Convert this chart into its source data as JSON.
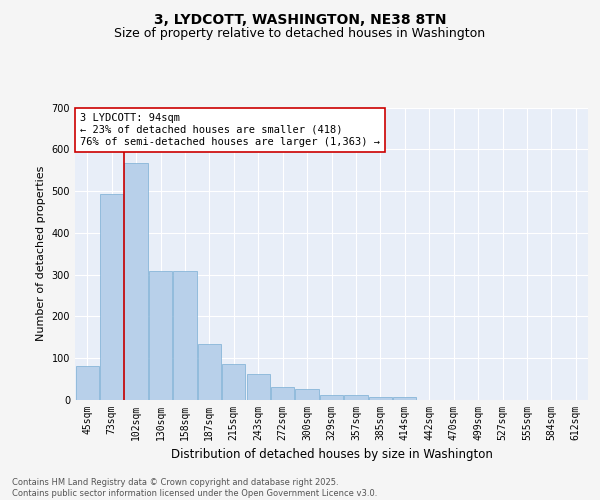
{
  "title": "3, LYDCOTT, WASHINGTON, NE38 8TN",
  "subtitle": "Size of property relative to detached houses in Washington",
  "xlabel": "Distribution of detached houses by size in Washington",
  "ylabel": "Number of detached properties",
  "categories": [
    "45sqm",
    "73sqm",
    "102sqm",
    "130sqm",
    "158sqm",
    "187sqm",
    "215sqm",
    "243sqm",
    "272sqm",
    "300sqm",
    "329sqm",
    "357sqm",
    "385sqm",
    "414sqm",
    "442sqm",
    "470sqm",
    "499sqm",
    "527sqm",
    "555sqm",
    "584sqm",
    "612sqm"
  ],
  "values": [
    82,
    494,
    567,
    308,
    308,
    135,
    85,
    62,
    30,
    27,
    12,
    12,
    8,
    8,
    0,
    0,
    0,
    0,
    0,
    0,
    0
  ],
  "bar_color": "#b8d0ea",
  "bar_edge_color": "#7aaed4",
  "background_color": "#e8eef8",
  "grid_color": "#ffffff",
  "property_line_color": "#cc0000",
  "annotation_text": "3 LYDCOTT: 94sqm\n← 23% of detached houses are smaller (418)\n76% of semi-detached houses are larger (1,363) →",
  "annotation_box_color": "#ffffff",
  "annotation_box_edge": "#cc0000",
  "ylim": [
    0,
    700
  ],
  "yticks": [
    0,
    100,
    200,
    300,
    400,
    500,
    600,
    700
  ],
  "footer_text": "Contains HM Land Registry data © Crown copyright and database right 2025.\nContains public sector information licensed under the Open Government Licence v3.0.",
  "title_fontsize": 10,
  "subtitle_fontsize": 9,
  "xlabel_fontsize": 8.5,
  "ylabel_fontsize": 8,
  "tick_fontsize": 7,
  "footer_fontsize": 6,
  "fig_bg": "#f5f5f5"
}
